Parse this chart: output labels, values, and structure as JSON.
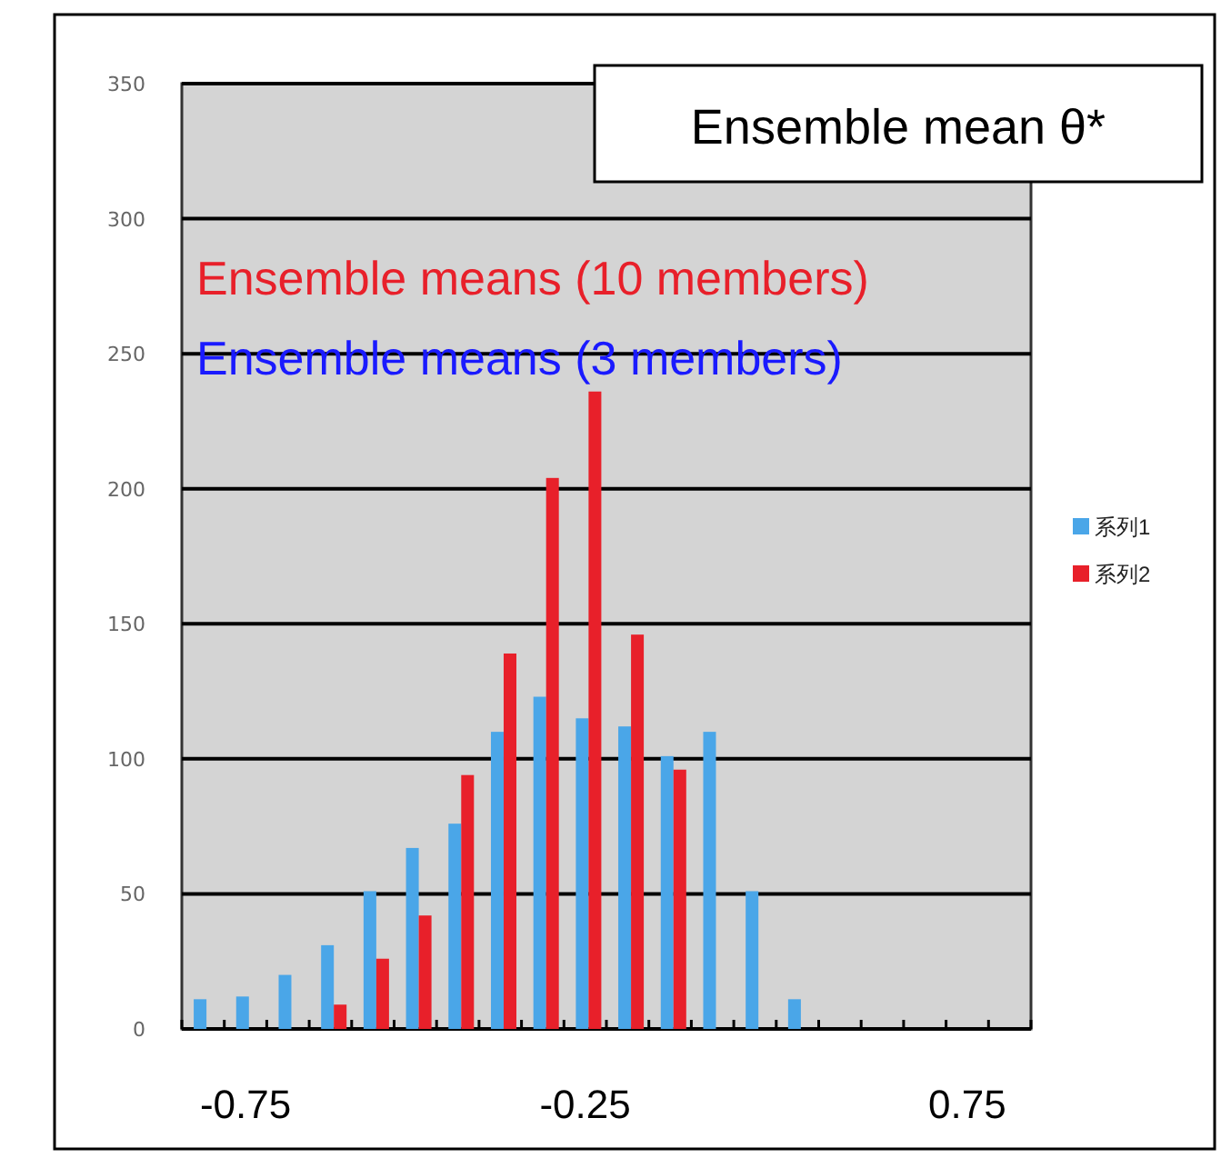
{
  "chart_data": {
    "type": "bar",
    "title": "Ensemble mean θ*",
    "annotations": [
      "Ensemble means (10 members)",
      "Ensemble means (3 members)"
    ],
    "categories": [
      null,
      "-0.75",
      null,
      null,
      null,
      null,
      null,
      null,
      null,
      "-0.25",
      null,
      null,
      null,
      null,
      null,
      null,
      null,
      null,
      "0.75",
      null
    ],
    "series": [
      {
        "name": "系列1",
        "color": "#4aa6e8",
        "values": [
          11,
          12,
          20,
          31,
          51,
          67,
          76,
          110,
          123,
          115,
          112,
          101,
          110,
          51,
          11,
          0,
          0,
          0,
          0,
          0
        ]
      },
      {
        "name": "系列2",
        "color": "#e8202a",
        "values": [
          0,
          0,
          0,
          9,
          26,
          42,
          94,
          139,
          204,
          236,
          146,
          96,
          0,
          0,
          0,
          0,
          0,
          0,
          0,
          0
        ]
      }
    ],
    "ylim": [
      0,
      350
    ],
    "yticks": [
      0,
      50,
      100,
      150,
      200,
      250,
      300,
      350
    ],
    "grid": "y",
    "legend": "right"
  }
}
